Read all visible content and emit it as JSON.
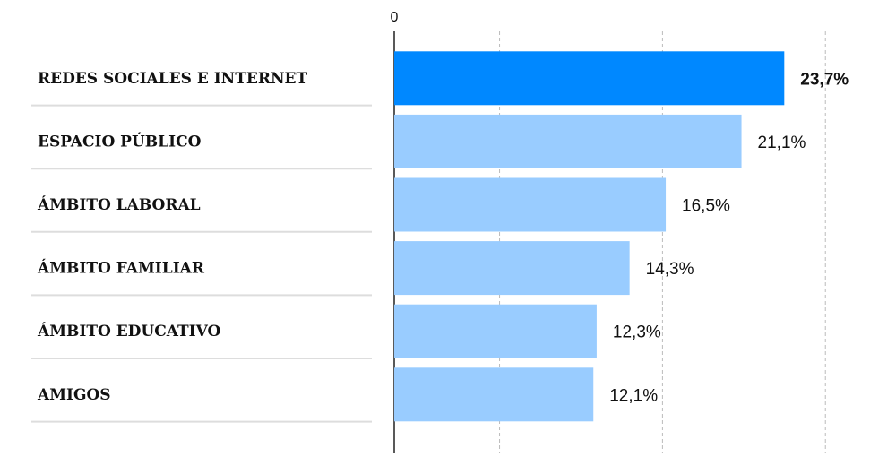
{
  "chart_data": {
    "type": "bar",
    "orientation": "horizontal",
    "categories": [
      "REDES SOCIALES E INTERNET",
      "ESPACIO PÚBLICO",
      "ÁMBITO LABORAL",
      "ÁMBITO FAMILIAR",
      "ÁMBITO EDUCATIVO",
      "AMIGOS"
    ],
    "values": [
      23.7,
      21.1,
      16.5,
      14.3,
      12.3,
      12.1
    ],
    "value_labels": [
      "23,7%",
      "21,1%",
      "16,5%",
      "14,3%",
      "12,3%",
      "12,1%"
    ],
    "colors": [
      "#0088ff",
      "#99ccff",
      "#99ccff",
      "#99ccff",
      "#99ccff",
      "#99ccff"
    ],
    "highlight": [
      true,
      false,
      false,
      false,
      false,
      false
    ],
    "xlim": [
      0,
      29.4
    ],
    "xticks": [
      0
    ],
    "grid_values": [
      6.4,
      16.3,
      26.2
    ],
    "grid": true
  }
}
